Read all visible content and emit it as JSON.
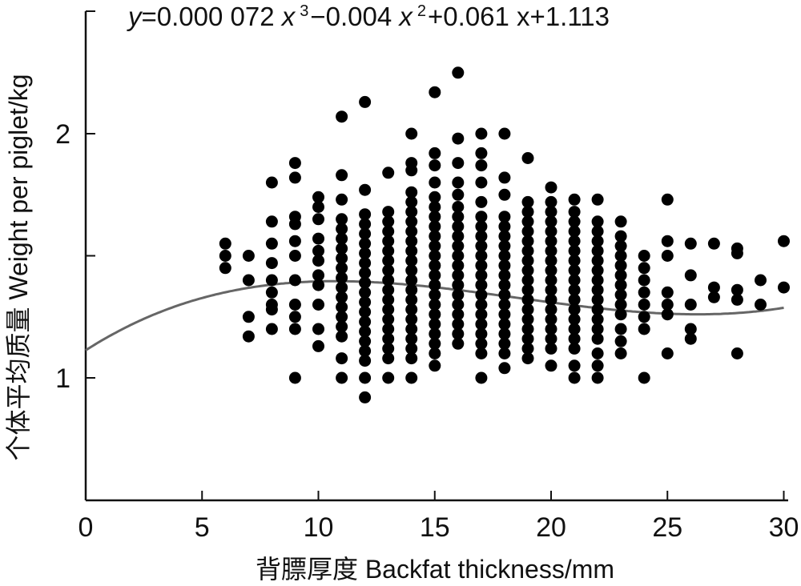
{
  "chart_data": {
    "type": "scatter",
    "title": "",
    "equation": {
      "y_var": "y",
      "body": "=0.000 072 ",
      "x1": "x",
      "exp1": "3",
      "mid": "−0.004 ",
      "x2": "x",
      "exp2": "2",
      "tail": "+0.061 x+1.113"
    },
    "xlabel": "背膘厚度 Backfat thickness/mm",
    "ylabel": "个体平均质量 Weight per piglet/kg",
    "xlim": [
      0,
      30
    ],
    "ylim": [
      0.5,
      2.5
    ],
    "x_ticks": [
      0,
      5,
      10,
      15,
      20,
      25,
      30
    ],
    "y_ticks_labeled": [
      1,
      2
    ],
    "y_ticks_minor": [
      1.5
    ],
    "grid": false,
    "fit_curve": {
      "type": "polynomial",
      "coefficients": [
        7.2e-05,
        -0.004,
        0.061,
        1.113
      ]
    },
    "points": [
      [
        6,
        1.55
      ],
      [
        6,
        1.5
      ],
      [
        6,
        1.45
      ],
      [
        7,
        1.5
      ],
      [
        7,
        1.4
      ],
      [
        7,
        1.25
      ],
      [
        7,
        1.17
      ],
      [
        8,
        1.8
      ],
      [
        8,
        1.64
      ],
      [
        8,
        1.55
      ],
      [
        8,
        1.47
      ],
      [
        8,
        1.4
      ],
      [
        8,
        1.35
      ],
      [
        8,
        1.3
      ],
      [
        8,
        1.28
      ],
      [
        8,
        1.2
      ],
      [
        9,
        1.88
      ],
      [
        9,
        1.82
      ],
      [
        9,
        1.66
      ],
      [
        9,
        1.63
      ],
      [
        9,
        1.56
      ],
      [
        9,
        1.5
      ],
      [
        9,
        1.4
      ],
      [
        9,
        1.3
      ],
      [
        9,
        1.25
      ],
      [
        9,
        1.2
      ],
      [
        9,
        1.0
      ],
      [
        10,
        1.74
      ],
      [
        10,
        1.7
      ],
      [
        10,
        1.65
      ],
      [
        10,
        1.57
      ],
      [
        10,
        1.52
      ],
      [
        10,
        1.48
      ],
      [
        10,
        1.42
      ],
      [
        10,
        1.38
      ],
      [
        10,
        1.3
      ],
      [
        10,
        1.2
      ],
      [
        10,
        1.13
      ],
      [
        11,
        2.07
      ],
      [
        11,
        1.83
      ],
      [
        11,
        1.73
      ],
      [
        11,
        1.65
      ],
      [
        11,
        1.61
      ],
      [
        11,
        1.57
      ],
      [
        11,
        1.53
      ],
      [
        11,
        1.49
      ],
      [
        11,
        1.45
      ],
      [
        11,
        1.41
      ],
      [
        11,
        1.37
      ],
      [
        11,
        1.33
      ],
      [
        11,
        1.29
      ],
      [
        11,
        1.25
      ],
      [
        11,
        1.21
      ],
      [
        11,
        1.17
      ],
      [
        11,
        1.08
      ],
      [
        11,
        1.0
      ],
      [
        12,
        2.13
      ],
      [
        12,
        1.77
      ],
      [
        12,
        1.67
      ],
      [
        12,
        1.63
      ],
      [
        12,
        1.59
      ],
      [
        12,
        1.55
      ],
      [
        12,
        1.51
      ],
      [
        12,
        1.47
      ],
      [
        12,
        1.43
      ],
      [
        12,
        1.39
      ],
      [
        12,
        1.35
      ],
      [
        12,
        1.31
      ],
      [
        12,
        1.27
      ],
      [
        12,
        1.23
      ],
      [
        12,
        1.19
      ],
      [
        12,
        1.15
      ],
      [
        12,
        1.11
      ],
      [
        12,
        1.07
      ],
      [
        12,
        1.0
      ],
      [
        12,
        0.92
      ],
      [
        13,
        1.84
      ],
      [
        13,
        1.68
      ],
      [
        13,
        1.64
      ],
      [
        13,
        1.6
      ],
      [
        13,
        1.56
      ],
      [
        13,
        1.52
      ],
      [
        13,
        1.48
      ],
      [
        13,
        1.44
      ],
      [
        13,
        1.4
      ],
      [
        13,
        1.36
      ],
      [
        13,
        1.32
      ],
      [
        13,
        1.28
      ],
      [
        13,
        1.24
      ],
      [
        13,
        1.2
      ],
      [
        13,
        1.16
      ],
      [
        13,
        1.12
      ],
      [
        13,
        1.08
      ],
      [
        13,
        1.0
      ],
      [
        14,
        2.0
      ],
      [
        14,
        1.88
      ],
      [
        14,
        1.85
      ],
      [
        14,
        1.76
      ],
      [
        14,
        1.72
      ],
      [
        14,
        1.68
      ],
      [
        14,
        1.64
      ],
      [
        14,
        1.6
      ],
      [
        14,
        1.56
      ],
      [
        14,
        1.52
      ],
      [
        14,
        1.48
      ],
      [
        14,
        1.44
      ],
      [
        14,
        1.4
      ],
      [
        14,
        1.36
      ],
      [
        14,
        1.32
      ],
      [
        14,
        1.28
      ],
      [
        14,
        1.24
      ],
      [
        14,
        1.2
      ],
      [
        14,
        1.16
      ],
      [
        14,
        1.12
      ],
      [
        14,
        1.08
      ],
      [
        14,
        1.0
      ],
      [
        15,
        2.17
      ],
      [
        15,
        1.92
      ],
      [
        15,
        1.87
      ],
      [
        15,
        1.8
      ],
      [
        15,
        1.74
      ],
      [
        15,
        1.7
      ],
      [
        15,
        1.66
      ],
      [
        15,
        1.62
      ],
      [
        15,
        1.58
      ],
      [
        15,
        1.54
      ],
      [
        15,
        1.5
      ],
      [
        15,
        1.46
      ],
      [
        15,
        1.42
      ],
      [
        15,
        1.38
      ],
      [
        15,
        1.34
      ],
      [
        15,
        1.3
      ],
      [
        15,
        1.26
      ],
      [
        15,
        1.22
      ],
      [
        15,
        1.18
      ],
      [
        15,
        1.14
      ],
      [
        15,
        1.1
      ],
      [
        15,
        1.05
      ],
      [
        16,
        2.25
      ],
      [
        16,
        1.98
      ],
      [
        16,
        1.88
      ],
      [
        16,
        1.8
      ],
      [
        16,
        1.75
      ],
      [
        16,
        1.7
      ],
      [
        16,
        1.66
      ],
      [
        16,
        1.62
      ],
      [
        16,
        1.58
      ],
      [
        16,
        1.54
      ],
      [
        16,
        1.5
      ],
      [
        16,
        1.46
      ],
      [
        16,
        1.42
      ],
      [
        16,
        1.38
      ],
      [
        16,
        1.34
      ],
      [
        16,
        1.3
      ],
      [
        16,
        1.26
      ],
      [
        16,
        1.22
      ],
      [
        16,
        1.18
      ],
      [
        16,
        1.14
      ],
      [
        17,
        2.0
      ],
      [
        17,
        1.92
      ],
      [
        17,
        1.87
      ],
      [
        17,
        1.8
      ],
      [
        17,
        1.72
      ],
      [
        17,
        1.66
      ],
      [
        17,
        1.62
      ],
      [
        17,
        1.58
      ],
      [
        17,
        1.54
      ],
      [
        17,
        1.5
      ],
      [
        17,
        1.46
      ],
      [
        17,
        1.42
      ],
      [
        17,
        1.38
      ],
      [
        17,
        1.34
      ],
      [
        17,
        1.3
      ],
      [
        17,
        1.26
      ],
      [
        17,
        1.22
      ],
      [
        17,
        1.18
      ],
      [
        17,
        1.14
      ],
      [
        17,
        1.1
      ],
      [
        17,
        1.0
      ],
      [
        18,
        2.0
      ],
      [
        18,
        1.82
      ],
      [
        18,
        1.75
      ],
      [
        18,
        1.66
      ],
      [
        18,
        1.62
      ],
      [
        18,
        1.58
      ],
      [
        18,
        1.54
      ],
      [
        18,
        1.5
      ],
      [
        18,
        1.46
      ],
      [
        18,
        1.42
      ],
      [
        18,
        1.38
      ],
      [
        18,
        1.34
      ],
      [
        18,
        1.3
      ],
      [
        18,
        1.26
      ],
      [
        18,
        1.22
      ],
      [
        18,
        1.18
      ],
      [
        18,
        1.14
      ],
      [
        18,
        1.1
      ],
      [
        18,
        1.04
      ],
      [
        19,
        1.9
      ],
      [
        19,
        1.72
      ],
      [
        19,
        1.68
      ],
      [
        19,
        1.64
      ],
      [
        19,
        1.6
      ],
      [
        19,
        1.56
      ],
      [
        19,
        1.52
      ],
      [
        19,
        1.48
      ],
      [
        19,
        1.44
      ],
      [
        19,
        1.4
      ],
      [
        19,
        1.36
      ],
      [
        19,
        1.32
      ],
      [
        19,
        1.28
      ],
      [
        19,
        1.24
      ],
      [
        19,
        1.2
      ],
      [
        19,
        1.16
      ],
      [
        19,
        1.12
      ],
      [
        19,
        1.08
      ],
      [
        20,
        1.78
      ],
      [
        20,
        1.72
      ],
      [
        20,
        1.68
      ],
      [
        20,
        1.64
      ],
      [
        20,
        1.6
      ],
      [
        20,
        1.56
      ],
      [
        20,
        1.52
      ],
      [
        20,
        1.48
      ],
      [
        20,
        1.44
      ],
      [
        20,
        1.4
      ],
      [
        20,
        1.36
      ],
      [
        20,
        1.32
      ],
      [
        20,
        1.28
      ],
      [
        20,
        1.24
      ],
      [
        20,
        1.2
      ],
      [
        20,
        1.16
      ],
      [
        20,
        1.12
      ],
      [
        20,
        1.05
      ],
      [
        21,
        1.73
      ],
      [
        21,
        1.68
      ],
      [
        21,
        1.64
      ],
      [
        21,
        1.6
      ],
      [
        21,
        1.56
      ],
      [
        21,
        1.52
      ],
      [
        21,
        1.48
      ],
      [
        21,
        1.44
      ],
      [
        21,
        1.4
      ],
      [
        21,
        1.36
      ],
      [
        21,
        1.32
      ],
      [
        21,
        1.28
      ],
      [
        21,
        1.24
      ],
      [
        21,
        1.2
      ],
      [
        21,
        1.16
      ],
      [
        21,
        1.12
      ],
      [
        21,
        1.05
      ],
      [
        21,
        1.0
      ],
      [
        22,
        1.73
      ],
      [
        22,
        1.64
      ],
      [
        22,
        1.6
      ],
      [
        22,
        1.56
      ],
      [
        22,
        1.52
      ],
      [
        22,
        1.48
      ],
      [
        22,
        1.44
      ],
      [
        22,
        1.4
      ],
      [
        22,
        1.36
      ],
      [
        22,
        1.32
      ],
      [
        22,
        1.28
      ],
      [
        22,
        1.24
      ],
      [
        22,
        1.2
      ],
      [
        22,
        1.16
      ],
      [
        22,
        1.1
      ],
      [
        22,
        1.05
      ],
      [
        22,
        1.0
      ],
      [
        23,
        1.64
      ],
      [
        23,
        1.58
      ],
      [
        23,
        1.54
      ],
      [
        23,
        1.5
      ],
      [
        23,
        1.46
      ],
      [
        23,
        1.42
      ],
      [
        23,
        1.38
      ],
      [
        23,
        1.34
      ],
      [
        23,
        1.3
      ],
      [
        23,
        1.26
      ],
      [
        23,
        1.2
      ],
      [
        23,
        1.15
      ],
      [
        23,
        1.1
      ],
      [
        24,
        1.5
      ],
      [
        24,
        1.45
      ],
      [
        24,
        1.4
      ],
      [
        24,
        1.35
      ],
      [
        24,
        1.3
      ],
      [
        24,
        1.25
      ],
      [
        24,
        1.2
      ],
      [
        24,
        1.0
      ],
      [
        25,
        1.73
      ],
      [
        25,
        1.56
      ],
      [
        25,
        1.5
      ],
      [
        25,
        1.35
      ],
      [
        25,
        1.3
      ],
      [
        25,
        1.26
      ],
      [
        25,
        1.1
      ],
      [
        26,
        1.55
      ],
      [
        26,
        1.42
      ],
      [
        26,
        1.3
      ],
      [
        26,
        1.2
      ],
      [
        26,
        1.16
      ],
      [
        27,
        1.55
      ],
      [
        27,
        1.37
      ],
      [
        27,
        1.33
      ],
      [
        28,
        1.53
      ],
      [
        28,
        1.51
      ],
      [
        28,
        1.36
      ],
      [
        28,
        1.32
      ],
      [
        28,
        1.1
      ],
      [
        29,
        1.4
      ],
      [
        29,
        1.3
      ],
      [
        30,
        1.56
      ],
      [
        30,
        1.37
      ]
    ]
  }
}
